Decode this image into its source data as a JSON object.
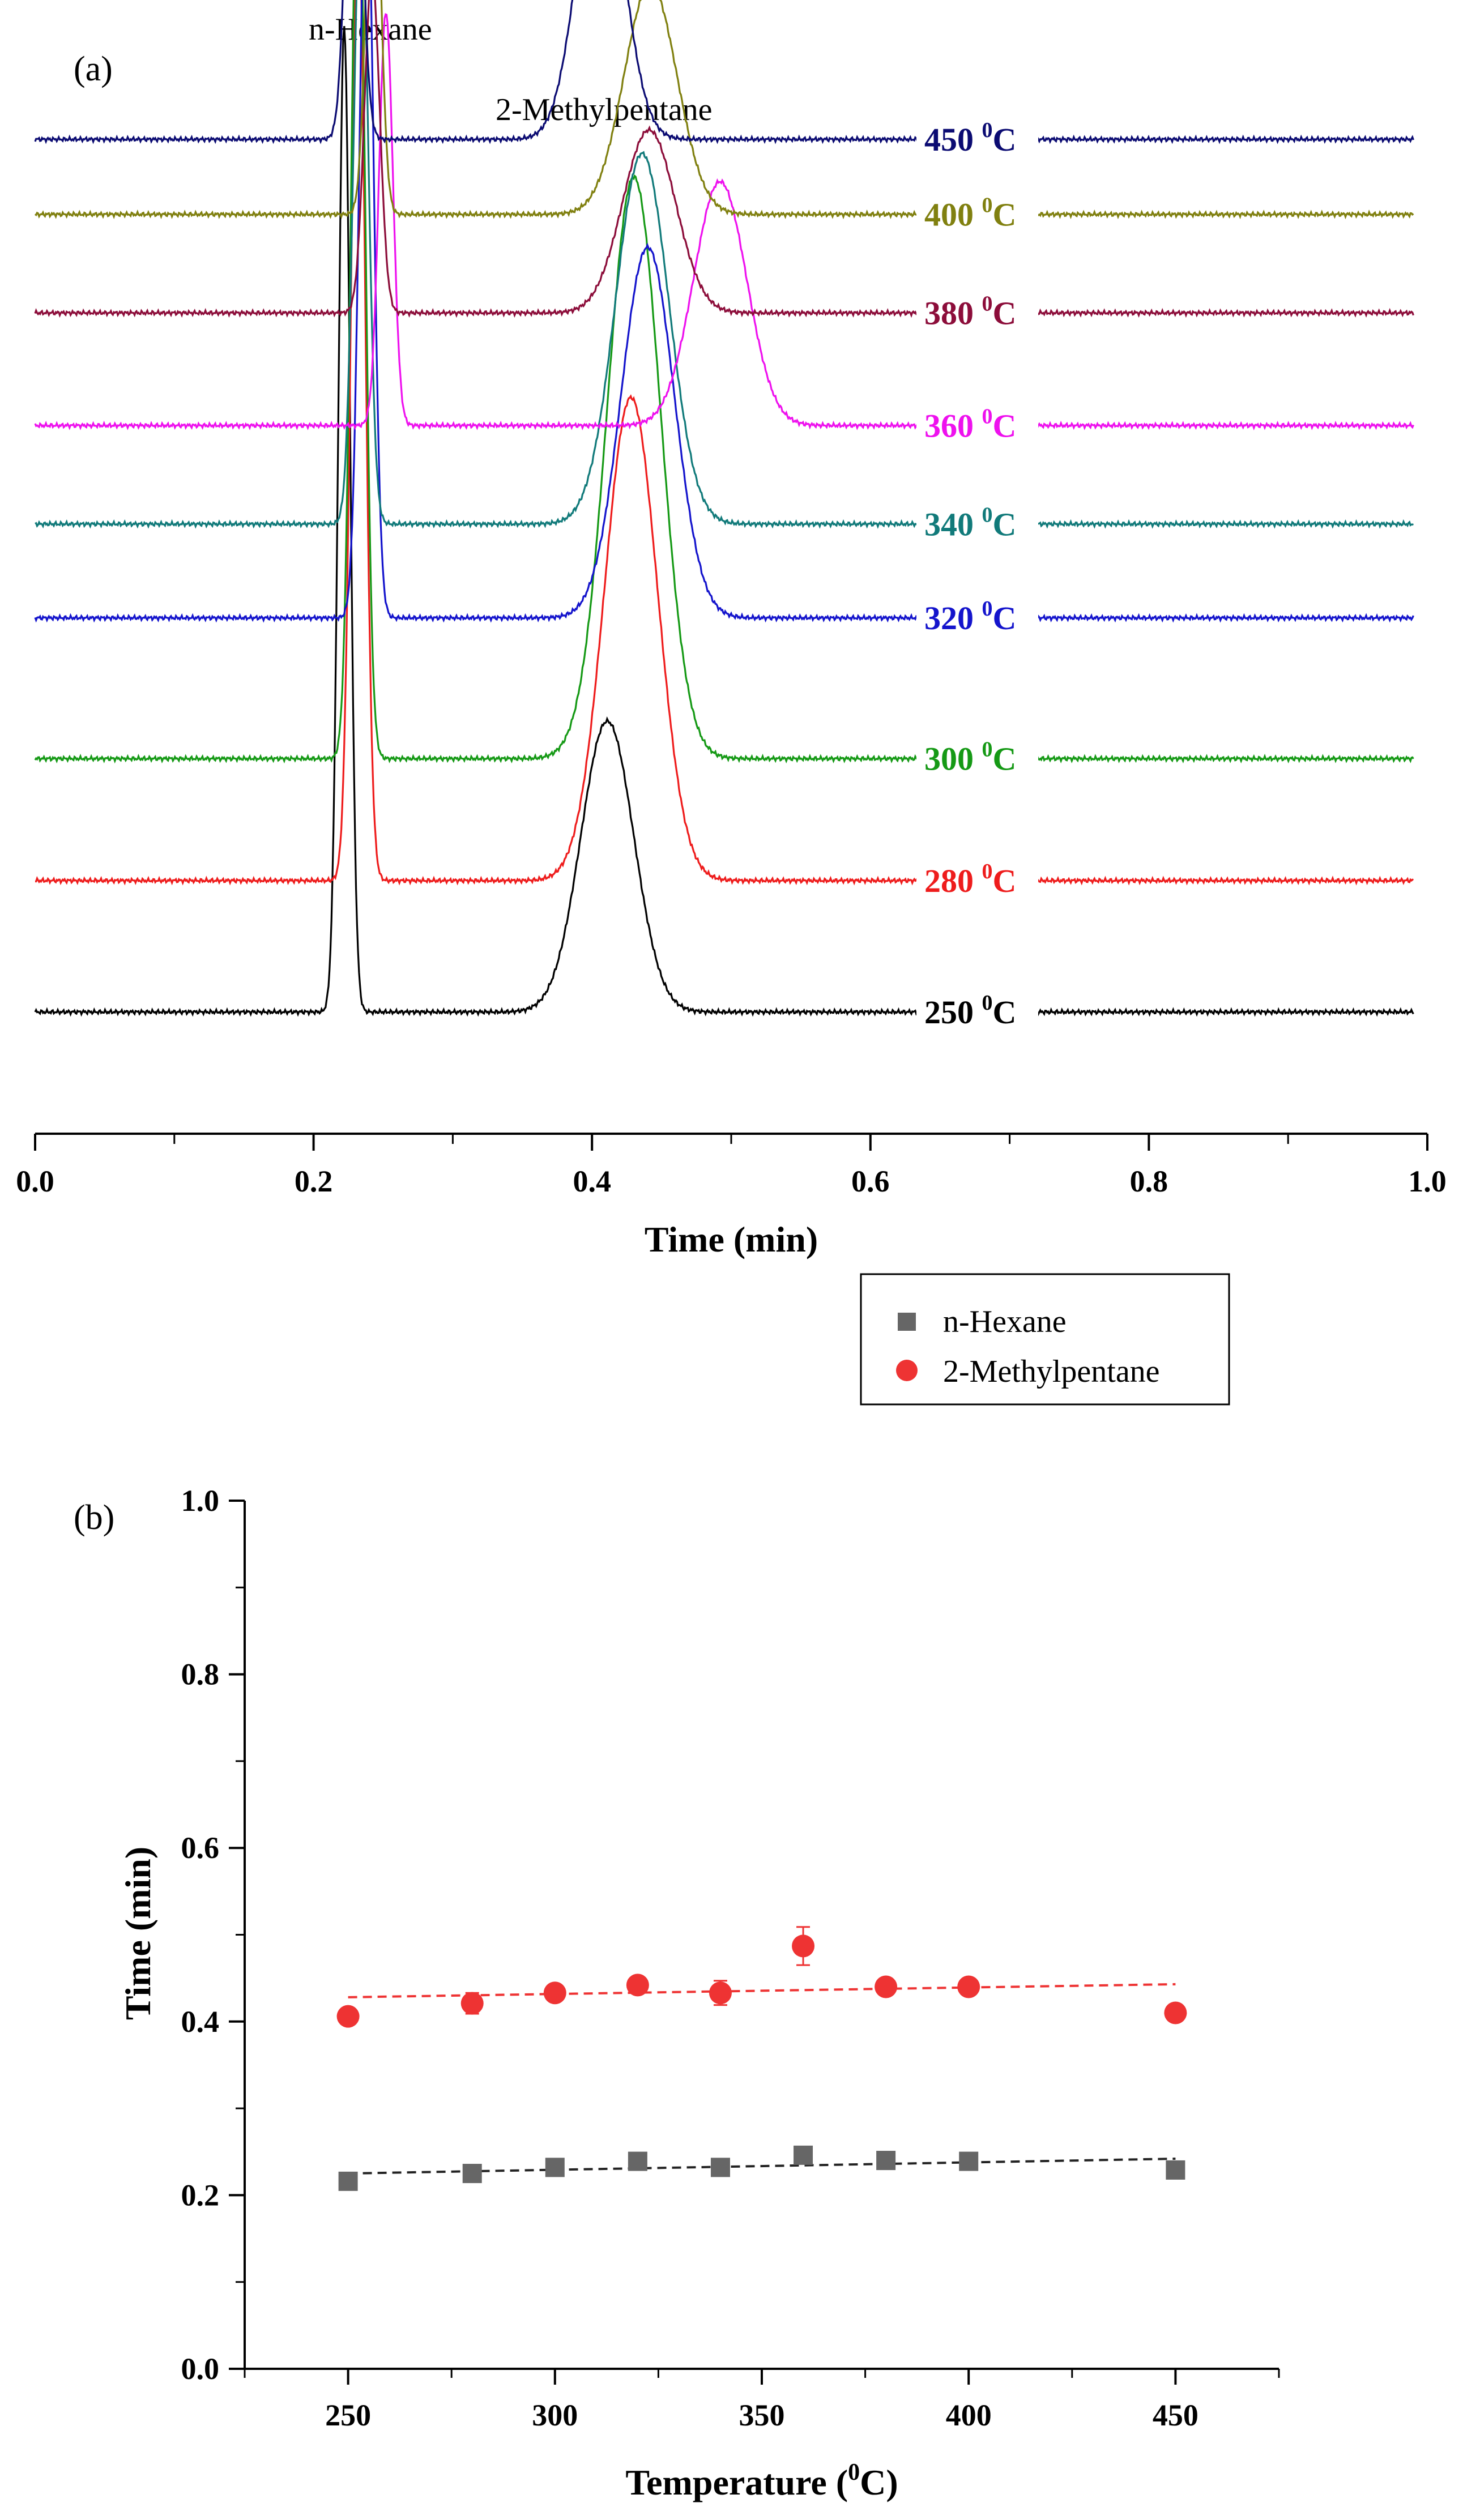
{
  "chart_data": [
    {
      "type": "line",
      "panel_label": "(a)",
      "title": "",
      "xlabel": "Time (min)",
      "ylabel": "",
      "xlim": [
        0.0,
        1.0
      ],
      "x_ticks": [
        "0.0",
        "0.2",
        "0.4",
        "0.6",
        "0.8",
        "1.0"
      ],
      "x_tick_values": [
        0.0,
        0.2,
        0.4,
        0.6,
        0.8,
        1.0
      ],
      "y_ticks_shown": false,
      "annotations": [
        "n-Hexane",
        "2-Methylpentane"
      ],
      "series": [
        {
          "name": "250 0C",
          "temp": "250",
          "unit": "0C",
          "color": "#000000",
          "baseline": 0.0,
          "end_time": 0.99,
          "peaks": [
            {
              "time": 0.222,
              "height": 1.05,
              "sigma": 0.0042
            },
            {
              "time": 0.411,
              "height": 0.31,
              "sigma": 0.019
            }
          ]
        },
        {
          "name": "280 0C",
          "temp": "280",
          "unit": "0C",
          "color": "#ee1c1c",
          "baseline": 0.14,
          "end_time": 0.99,
          "peaks": [
            {
              "time": 0.232,
              "height": 1.05,
              "sigma": 0.005
            },
            {
              "time": 0.428,
              "height": 0.515,
              "sigma": 0.019
            }
          ]
        },
        {
          "name": "300 0C",
          "temp": "300",
          "unit": "0C",
          "color": "#159915",
          "baseline": 0.27,
          "end_time": 0.99,
          "peaks": [
            {
              "time": 0.232,
              "height": 1.0,
              "sigma": 0.005
            },
            {
              "time": 0.43,
              "height": 0.62,
              "sigma": 0.019
            }
          ]
        },
        {
          "name": "320 0C",
          "temp": "320",
          "unit": "0C",
          "color": "#1414cc",
          "baseline": 0.42,
          "end_time": 0.99,
          "peaks": [
            {
              "time": 0.238,
              "height": 0.83,
              "sigma": 0.005
            },
            {
              "time": 0.44,
              "height": 0.395,
              "sigma": 0.019
            }
          ]
        },
        {
          "name": "340 0C",
          "temp": "340",
          "unit": "0C",
          "color": "#117a7a",
          "baseline": 0.52,
          "end_time": 0.99,
          "peaks": [
            {
              "time": 0.234,
              "height": 0.68,
              "sigma": 0.0052
            },
            {
              "time": 0.436,
              "height": 0.395,
              "sigma": 0.019
            }
          ]
        },
        {
          "name": "360 0C",
          "temp": "360",
          "unit": "0C",
          "color": "#ee11ee",
          "baseline": 0.625,
          "end_time": 0.99,
          "peaks": [
            {
              "time": 0.252,
              "height": 0.44,
              "sigma": 0.005
            },
            {
              "time": 0.492,
              "height": 0.26,
              "sigma": 0.019
            }
          ]
        },
        {
          "name": "380 0C",
          "temp": "380",
          "unit": "0C",
          "color": "#8c0d3a",
          "baseline": 0.745,
          "end_time": 0.99,
          "peaks": [
            {
              "time": 0.242,
              "height": 0.36,
              "sigma": 0.0055
            },
            {
              "time": 0.441,
              "height": 0.195,
              "sigma": 0.019
            }
          ]
        },
        {
          "name": "400 0C",
          "temp": "400",
          "unit": "0C",
          "color": "#808010",
          "baseline": 0.85,
          "end_time": 0.99,
          "peaks": [
            {
              "time": 0.243,
              "height": 0.44,
              "sigma": 0.005
            },
            {
              "time": 0.442,
              "height": 0.245,
              "sigma": 0.019
            }
          ]
        },
        {
          "name": "450 0C",
          "temp": "450",
          "unit": "0C",
          "color": "#0b0b72",
          "baseline": 0.93,
          "end_time": 0.99,
          "peaks": [
            {
              "time": 0.229,
              "height": 0.44,
              "sigma": 0.0055
            },
            {
              "time": 0.406,
              "height": 0.31,
              "sigma": 0.0165
            }
          ]
        }
      ]
    },
    {
      "type": "scatter",
      "panel_label": "(b)",
      "title": "",
      "xlabel": "Temperature (",
      "xlabel_sup": "0",
      "xlabel_tail": "C)",
      "ylabel": "Time (min)",
      "xlim": [
        225,
        475
      ],
      "ylim": [
        0.0,
        1.0
      ],
      "x_ticks": [
        "250",
        "300",
        "350",
        "400",
        "450"
      ],
      "x_tick_values": [
        250,
        300,
        350,
        400,
        450
      ],
      "y_ticks": [
        "0.0",
        "0.2",
        "0.4",
        "0.6",
        "0.8",
        "1.0"
      ],
      "y_tick_values": [
        0.0,
        0.2,
        0.4,
        0.6,
        0.8,
        1.0
      ],
      "legend_position": "upper-right",
      "series": [
        {
          "name": "n-Hexane",
          "marker": "square",
          "color": "#666666",
          "x": [
            250,
            280,
            300,
            320,
            340,
            360,
            380,
            400,
            450
          ],
          "y": [
            0.216,
            0.225,
            0.232,
            0.239,
            0.232,
            0.246,
            0.24,
            0.239,
            0.229
          ],
          "error": [
            0,
            0,
            0,
            0,
            0,
            0,
            0,
            0,
            0
          ],
          "fit": {
            "x": [
              250,
              450
            ],
            "y": [
              0.225,
              0.242
            ],
            "style": "dashed",
            "color": "#222222"
          }
        },
        {
          "name": "2-Methylpentane",
          "marker": "circle",
          "color": "#ee3333",
          "x": [
            250,
            280,
            300,
            320,
            340,
            360,
            380,
            400,
            450
          ],
          "y": [
            0.406,
            0.421,
            0.433,
            0.442,
            0.433,
            0.487,
            0.44,
            0.44,
            0.41
          ],
          "error": [
            0,
            0.012,
            0,
            0,
            0.014,
            0.022,
            0,
            0,
            0
          ],
          "fit": {
            "x": [
              250,
              450
            ],
            "y": [
              0.428,
              0.443
            ],
            "style": "dashed",
            "color": "#ee3333"
          }
        }
      ]
    }
  ]
}
